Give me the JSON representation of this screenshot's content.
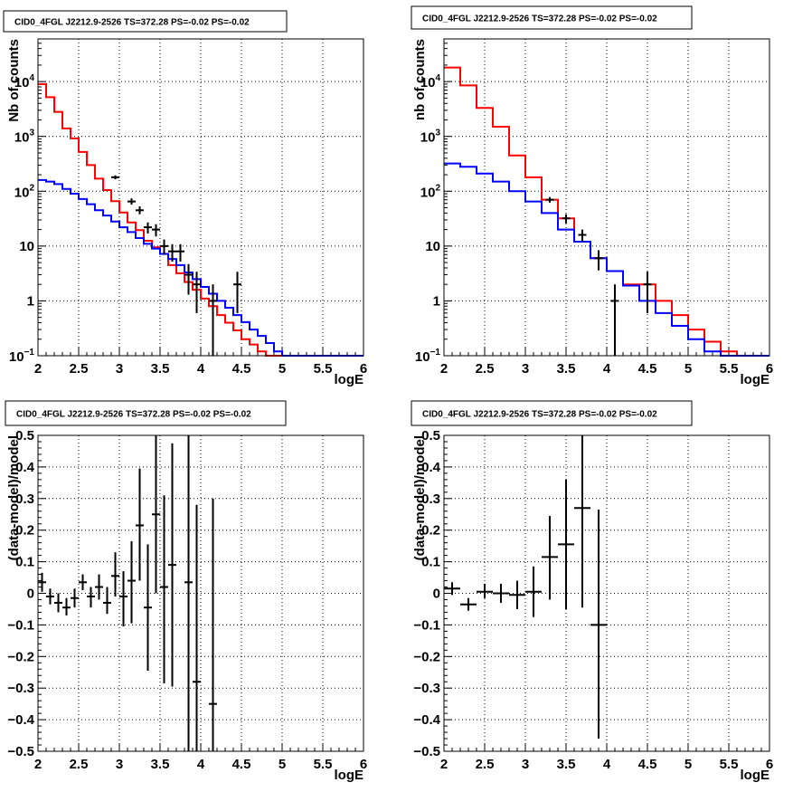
{
  "chart_data": [
    {
      "id": "p1",
      "type": "line",
      "scale": "log",
      "title": "CID0_4FGL J2212.9-2526 TS=372.28 PS=-0.02 PS=-0.02",
      "xlabel": "logE",
      "ylabel": "Nb of counts",
      "xlim": [
        2,
        6
      ],
      "ylim": [
        0.1,
        60000
      ],
      "xticks": [
        "2",
        "2.5",
        "3",
        "3.5",
        "4",
        "4.5",
        "5",
        "5.5",
        "6"
      ],
      "yticks": [
        {
          "v": 10000,
          "base": "10",
          "exp": "4"
        },
        {
          "v": 1000,
          "base": "10",
          "exp": "3"
        },
        {
          "v": 100,
          "base": "10",
          "exp": "2"
        },
        {
          "v": 10,
          "label": "10"
        },
        {
          "v": 1,
          "label": "1"
        },
        {
          "v": 0.1,
          "base": "10",
          "exp": "−1"
        }
      ],
      "grid": true,
      "series": [
        {
          "color": "#ff0000",
          "x0": 2.0,
          "dx": 0.1,
          "values": [
            9000,
            5200,
            2800,
            1400,
            920,
            520,
            300,
            170,
            105,
            66,
            41,
            27,
            19.5,
            12.5,
            9.5,
            7.2,
            4.5,
            3.2,
            2.2,
            1.6,
            1.1,
            0.8,
            0.55,
            0.4,
            0.29,
            0.2,
            0.16,
            0.12,
            0.1,
            0.1,
            0.1,
            0.1,
            0.1,
            0.1,
            0.1,
            0.1,
            0.1,
            0.1,
            0.1,
            0.1
          ]
        },
        {
          "color": "#0000ff",
          "x0": 2.0,
          "dx": 0.1,
          "values": [
            160,
            150,
            135,
            110,
            90,
            72,
            58,
            45,
            36,
            28,
            22,
            18,
            14,
            11,
            9,
            7.2,
            5.8,
            4.5,
            3.3,
            2.5,
            1.8,
            1.35,
            1,
            0.75,
            0.55,
            0.41,
            0.3,
            0.23,
            0.17,
            0.12,
            0.1,
            0.1,
            0.1,
            0.1,
            0.1,
            0.1,
            0.1,
            0.1,
            0.1,
            0.1
          ]
        }
      ],
      "points": [
        {
          "x": 2.95,
          "y": 180,
          "lo": 165,
          "hi": 195
        },
        {
          "x": 3.15,
          "y": 65,
          "lo": 57,
          "hi": 74
        },
        {
          "x": 3.25,
          "y": 45,
          "lo": 38,
          "hi": 53
        },
        {
          "x": 3.35,
          "y": 22,
          "lo": 17,
          "hi": 27
        },
        {
          "x": 3.45,
          "y": 20,
          "lo": 15,
          "hi": 25
        },
        {
          "x": 3.55,
          "y": 10,
          "lo": 6.9,
          "hi": 13.2
        },
        {
          "x": 3.65,
          "y": 8,
          "lo": 5.2,
          "hi": 10.8
        },
        {
          "x": 3.75,
          "y": 8,
          "lo": 5.2,
          "hi": 10.8
        },
        {
          "x": 3.85,
          "y": 3,
          "lo": 1.3,
          "hi": 4.7
        },
        {
          "x": 3.95,
          "y": 2,
          "lo": 0.6,
          "hi": 3.4
        },
        {
          "x": 4.15,
          "y": 1,
          "lo": 0.1,
          "hi": 2
        },
        {
          "x": 4.45,
          "y": 2,
          "lo": 0.6,
          "hi": 3.4
        }
      ]
    },
    {
      "id": "p2",
      "type": "line",
      "scale": "log",
      "title": "CID0_4FGL J2212.9-2526 TS=372.28 PS=-0.02 PS=-0.02",
      "xlabel": "logE",
      "ylabel": "nb of counts",
      "xlim": [
        2,
        6
      ],
      "ylim": [
        0.1,
        60000
      ],
      "xticks": [
        "2",
        "2.5",
        "3",
        "3.5",
        "4",
        "4.5",
        "5",
        "5.5",
        "6"
      ],
      "yticks": [
        {
          "v": 10000,
          "base": "10",
          "exp": "4"
        },
        {
          "v": 1000,
          "base": "10",
          "exp": "3"
        },
        {
          "v": 100,
          "base": "10",
          "exp": "2"
        },
        {
          "v": 10,
          "label": "10"
        },
        {
          "v": 1,
          "label": "1"
        },
        {
          "v": 0.1,
          "base": "10",
          "exp": "−1"
        }
      ],
      "grid": true,
      "series": [
        {
          "color": "#ff0000",
          "x0": 2.0,
          "dx": 0.2,
          "values": [
            18000,
            8500,
            3300,
            1500,
            450,
            180,
            70,
            32,
            12,
            6,
            3.5,
            2,
            2,
            1,
            0.55,
            0.3,
            0.18,
            0.12,
            0.1,
            0.1
          ]
        },
        {
          "color": "#0000ff",
          "x0": 2.0,
          "dx": 0.2,
          "values": [
            320,
            280,
            210,
            150,
            100,
            65,
            40,
            20,
            12,
            6,
            3.5,
            1.9,
            1,
            0.6,
            0.35,
            0.2,
            0.12,
            0.1,
            0.1,
            0.1
          ]
        }
      ],
      "points": [
        {
          "x": 3.3,
          "y": 70,
          "lo": 62,
          "hi": 78
        },
        {
          "x": 3.5,
          "y": 32,
          "lo": 26,
          "hi": 38
        },
        {
          "x": 3.7,
          "y": 16,
          "lo": 12,
          "hi": 20
        },
        {
          "x": 3.9,
          "y": 6,
          "lo": 3.6,
          "hi": 8.4
        },
        {
          "x": 4.1,
          "y": 1,
          "lo": 0.1,
          "hi": 2
        },
        {
          "x": 4.5,
          "y": 2,
          "lo": 0.6,
          "hi": 3.4
        }
      ]
    },
    {
      "id": "p3",
      "type": "scatter",
      "scale": "linear",
      "title": "CID0_4FGL J2212.9-2526 TS=372.28 PS=-0.02 PS=-0.02",
      "xlabel": "logE",
      "ylabel": "(data-model)/model",
      "xlim": [
        2,
        6
      ],
      "ylim": [
        -0.5,
        0.5
      ],
      "xticks": [
        "2",
        "2.5",
        "3",
        "3.5",
        "4",
        "4.5",
        "5",
        "5.5",
        "6"
      ],
      "yticks": [
        {
          "v": 0.5,
          "label": "0.5"
        },
        {
          "v": 0.4,
          "label": "0.4"
        },
        {
          "v": 0.3,
          "label": "0.3"
        },
        {
          "v": 0.2,
          "label": "0.2"
        },
        {
          "v": 0.1,
          "label": "0.1"
        },
        {
          "v": 0,
          "label": "0"
        },
        {
          "v": -0.1,
          "label": "−0.1"
        },
        {
          "v": -0.2,
          "label": "−0.2"
        },
        {
          "v": -0.3,
          "label": "−0.3"
        },
        {
          "v": -0.4,
          "label": "−0.4"
        },
        {
          "v": -0.5,
          "label": "−0.5"
        }
      ],
      "grid": true,
      "points": [
        {
          "x": 2.05,
          "y": 0.035,
          "lo": 0.005,
          "hi": 0.065,
          "xerr": 0.05
        },
        {
          "x": 2.15,
          "y": -0.01,
          "lo": -0.035,
          "hi": 0.015,
          "xerr": 0.05
        },
        {
          "x": 2.25,
          "y": -0.03,
          "lo": -0.06,
          "hi": 0.0,
          "xerr": 0.05
        },
        {
          "x": 2.35,
          "y": -0.045,
          "lo": -0.07,
          "hi": -0.015,
          "xerr": 0.05
        },
        {
          "x": 2.45,
          "y": -0.015,
          "lo": -0.045,
          "hi": 0.015,
          "xerr": 0.05
        },
        {
          "x": 2.55,
          "y": 0.035,
          "lo": 0.01,
          "hi": 0.06,
          "xerr": 0.05
        },
        {
          "x": 2.65,
          "y": -0.01,
          "lo": -0.045,
          "hi": 0.02,
          "xerr": 0.05
        },
        {
          "x": 2.75,
          "y": 0.02,
          "lo": -0.02,
          "hi": 0.06,
          "xerr": 0.05
        },
        {
          "x": 2.85,
          "y": -0.03,
          "lo": -0.065,
          "hi": 0.02,
          "xerr": 0.05
        },
        {
          "x": 2.95,
          "y": 0.055,
          "lo": -0.01,
          "hi": 0.13,
          "xerr": 0.05
        },
        {
          "x": 3.05,
          "y": -0.01,
          "lo": -0.105,
          "hi": 0.07,
          "xerr": 0.05
        },
        {
          "x": 3.15,
          "y": 0.04,
          "lo": -0.095,
          "hi": 0.165,
          "xerr": 0.05
        },
        {
          "x": 3.25,
          "y": 0.215,
          "lo": 0.04,
          "hi": 0.395,
          "xerr": 0.05
        },
        {
          "x": 3.35,
          "y": -0.045,
          "lo": -0.245,
          "hi": 0.155,
          "xerr": 0.05
        },
        {
          "x": 3.45,
          "y": 0.25,
          "lo": 0.0,
          "hi": 0.5,
          "xerr": 0.05
        },
        {
          "x": 3.55,
          "y": 0.02,
          "lo": -0.285,
          "hi": 0.31,
          "xerr": 0.05
        },
        {
          "x": 3.65,
          "y": 0.09,
          "lo": -0.295,
          "hi": 0.475,
          "xerr": 0.05
        },
        {
          "x": 3.85,
          "y": 0.035,
          "lo": -0.5,
          "hi": 0.5,
          "xerr": 0.05
        },
        {
          "x": 3.95,
          "y": -0.28,
          "lo": -0.5,
          "hi": 0.28,
          "xerr": 0.05
        },
        {
          "x": 4.15,
          "y": -0.35,
          "lo": -0.5,
          "hi": 0.3,
          "xerr": 0.05
        }
      ]
    },
    {
      "id": "p4",
      "type": "scatter",
      "scale": "linear",
      "title": "CID0_4FGL J2212.9-2526 TS=372.28 PS=-0.02 PS=-0.02",
      "xlabel": "logE",
      "ylabel": "(data-model)/model",
      "xlim": [
        2,
        6
      ],
      "ylim": [
        -0.5,
        0.5
      ],
      "xticks": [
        "2",
        "2.5",
        "3",
        "3.5",
        "4",
        "4.5",
        "5",
        "5.5",
        "6"
      ],
      "yticks": [
        {
          "v": 0.5,
          "label": "0.5"
        },
        {
          "v": 0.4,
          "label": "0.4"
        },
        {
          "v": 0.3,
          "label": "0.3"
        },
        {
          "v": 0.2,
          "label": "0.2"
        },
        {
          "v": 0.1,
          "label": "0.1"
        },
        {
          "v": 0,
          "label": "0"
        },
        {
          "v": -0.1,
          "label": "−0.1"
        },
        {
          "v": -0.2,
          "label": "−0.2"
        },
        {
          "v": -0.3,
          "label": "−0.3"
        },
        {
          "v": -0.4,
          "label": "−0.4"
        },
        {
          "v": -0.5,
          "label": "−0.5"
        }
      ],
      "grid": true,
      "points": [
        {
          "x": 2.1,
          "y": 0.015,
          "lo": -0.005,
          "hi": 0.035,
          "xerr": 0.1
        },
        {
          "x": 2.3,
          "y": -0.035,
          "lo": -0.055,
          "hi": -0.015,
          "xerr": 0.1
        },
        {
          "x": 2.5,
          "y": 0.005,
          "lo": -0.015,
          "hi": 0.03,
          "xerr": 0.1
        },
        {
          "x": 2.7,
          "y": 0.0,
          "lo": -0.03,
          "hi": 0.03,
          "xerr": 0.1
        },
        {
          "x": 2.9,
          "y": -0.005,
          "lo": -0.05,
          "hi": 0.04,
          "xerr": 0.1
        },
        {
          "x": 3.1,
          "y": 0.005,
          "lo": -0.075,
          "hi": 0.085,
          "xerr": 0.1
        },
        {
          "x": 3.3,
          "y": 0.115,
          "lo": -0.02,
          "hi": 0.245,
          "xerr": 0.1
        },
        {
          "x": 3.5,
          "y": 0.155,
          "lo": -0.05,
          "hi": 0.36,
          "xerr": 0.1
        },
        {
          "x": 3.7,
          "y": 0.27,
          "lo": -0.045,
          "hi": 0.5,
          "xerr": 0.1
        },
        {
          "x": 3.9,
          "y": -0.1,
          "lo": -0.46,
          "hi": 0.265,
          "xerr": 0.1
        }
      ]
    }
  ]
}
